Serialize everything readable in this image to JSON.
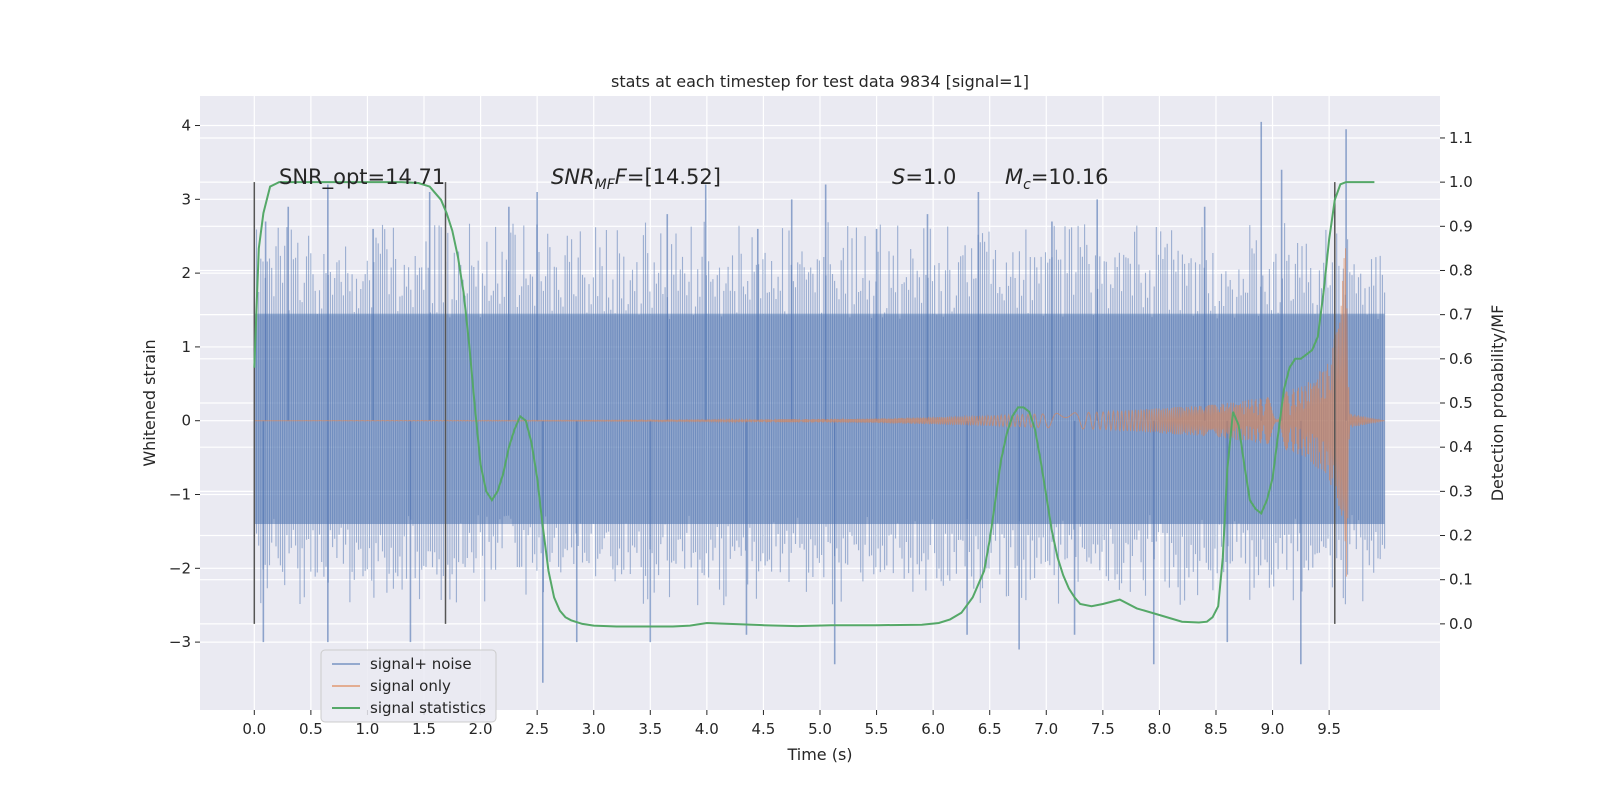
{
  "chart_data": {
    "type": "line",
    "title": "stats at each timestep for test data 9834 [signal=1]",
    "xlabel": "Time (s)",
    "ylabel": "Whitened strain",
    "y2label": "Detection probability/MF",
    "xlim": [
      -0.48,
      10.48
    ],
    "ylim": [
      -3.92,
      4.4
    ],
    "y2lim": [
      -0.195,
      1.195
    ],
    "x_ticks": [
      0.0,
      0.5,
      1.0,
      1.5,
      2.0,
      2.5,
      3.0,
      3.5,
      4.0,
      4.5,
      5.0,
      5.5,
      6.0,
      6.5,
      7.0,
      7.5,
      8.0,
      8.5,
      9.0,
      9.5
    ],
    "x_tick_labels": [
      "0.0",
      "0.5",
      "1.0",
      "1.5",
      "2.0",
      "2.5",
      "3.0",
      "3.5",
      "4.0",
      "4.5",
      "5.0",
      "5.5",
      "6.0",
      "6.5",
      "7.0",
      "7.5",
      "8.0",
      "8.5",
      "9.0",
      "9.5"
    ],
    "y_ticks": [
      -3,
      -2,
      -1,
      0,
      1,
      2,
      3,
      4
    ],
    "y_tick_labels": [
      "−3",
      "−2",
      "−1",
      "0",
      "1",
      "2",
      "3",
      "4"
    ],
    "y2_ticks": [
      0.0,
      0.1,
      0.2,
      0.3,
      0.4,
      0.5,
      0.6,
      0.7,
      0.8,
      0.9,
      1.0,
      1.1
    ],
    "y2_tick_labels": [
      "0.0",
      "0.1",
      "0.2",
      "0.3",
      "0.4",
      "0.5",
      "0.6",
      "0.7",
      "0.8",
      "0.9",
      "1.0",
      "1.1"
    ],
    "grid": true,
    "legend_position": "lower-left",
    "series": [
      {
        "name": "signal+ noise",
        "axis": "left",
        "color": "#4c72b0",
        "alpha": 0.5,
        "x_range": [
          0.0,
          9.99
        ],
        "core_envelope": [
          -1.4,
          1.45
        ],
        "typical_peak_range": [
          -2.5,
          2.7
        ],
        "spikes": [
          {
            "x": 0.1,
            "y": 2.7
          },
          {
            "x": 0.3,
            "y": 2.9
          },
          {
            "x": 0.65,
            "y": 3.2
          },
          {
            "x": 1.05,
            "y": 2.6
          },
          {
            "x": 1.55,
            "y": 3.1
          },
          {
            "x": 2.25,
            "y": 2.9
          },
          {
            "x": 2.5,
            "y": 3.1
          },
          {
            "x": 3.65,
            "y": 2.8
          },
          {
            "x": 3.99,
            "y": 3.2
          },
          {
            "x": 4.45,
            "y": 2.6
          },
          {
            "x": 4.75,
            "y": 3.0
          },
          {
            "x": 5.05,
            "y": 3.2
          },
          {
            "x": 5.5,
            "y": 2.6
          },
          {
            "x": 5.95,
            "y": 2.8
          },
          {
            "x": 6.4,
            "y": 3.1
          },
          {
            "x": 7.05,
            "y": 2.7
          },
          {
            "x": 7.45,
            "y": 3.0
          },
          {
            "x": 8.4,
            "y": 2.9
          },
          {
            "x": 8.9,
            "y": 4.05
          },
          {
            "x": 9.08,
            "y": 3.4
          },
          {
            "x": 9.65,
            "y": 3.95
          },
          {
            "x": 0.08,
            "y": -3.0
          },
          {
            "x": 0.65,
            "y": -3.0
          },
          {
            "x": 1.38,
            "y": -3.0
          },
          {
            "x": 2.55,
            "y": -3.55
          },
          {
            "x": 2.85,
            "y": -3.0
          },
          {
            "x": 3.5,
            "y": -3.0
          },
          {
            "x": 4.35,
            "y": -2.9
          },
          {
            "x": 5.13,
            "y": -3.3
          },
          {
            "x": 6.3,
            "y": -2.9
          },
          {
            "x": 6.76,
            "y": -3.1
          },
          {
            "x": 7.25,
            "y": -2.9
          },
          {
            "x": 7.95,
            "y": -3.3
          },
          {
            "x": 8.6,
            "y": -3.0
          },
          {
            "x": 9.25,
            "y": -3.3
          }
        ]
      },
      {
        "name": "signal only",
        "axis": "left",
        "color": "#dd8452",
        "alpha": 0.6,
        "description_points": [
          {
            "x": 0.0,
            "amp": 0.0
          },
          {
            "x": 4.0,
            "amp": 0.01
          },
          {
            "x": 5.5,
            "amp": 0.03
          },
          {
            "x": 6.5,
            "amp": 0.07
          },
          {
            "x": 7.5,
            "amp": 0.12
          },
          {
            "x": 8.5,
            "amp": 0.22
          },
          {
            "x": 9.0,
            "amp": 0.33
          },
          {
            "x": 9.3,
            "amp": 0.5
          },
          {
            "x": 9.5,
            "amp": 0.8
          },
          {
            "x": 9.6,
            "amp": 1.5
          },
          {
            "x": 9.65,
            "amp": 2.6
          },
          {
            "x": 9.68,
            "amp": 0.1
          },
          {
            "x": 9.99,
            "amp": 0.0
          }
        ]
      },
      {
        "name": "signal statistics",
        "axis": "right",
        "color": "#55a868",
        "x": [
          0.0,
          0.04,
          0.08,
          0.14,
          0.22,
          0.35,
          0.6,
          1.0,
          1.3,
          1.45,
          1.55,
          1.6,
          1.65,
          1.7,
          1.75,
          1.8,
          1.85,
          1.9,
          1.95,
          2.0,
          2.05,
          2.1,
          2.15,
          2.2,
          2.25,
          2.3,
          2.35,
          2.4,
          2.45,
          2.5,
          2.55,
          2.6,
          2.65,
          2.7,
          2.75,
          2.8,
          2.9,
          3.0,
          3.2,
          3.5,
          3.7,
          3.85,
          4.0,
          4.2,
          4.5,
          4.8,
          5.1,
          5.5,
          5.9,
          6.05,
          6.15,
          6.25,
          6.35,
          6.45,
          6.5,
          6.55,
          6.6,
          6.65,
          6.7,
          6.75,
          6.8,
          6.85,
          6.9,
          6.95,
          7.0,
          7.05,
          7.1,
          7.15,
          7.2,
          7.25,
          7.3,
          7.4,
          7.5,
          7.65,
          7.8,
          8.0,
          8.2,
          8.35,
          8.42,
          8.47,
          8.52,
          8.56,
          8.6,
          8.65,
          8.7,
          8.75,
          8.8,
          8.85,
          8.9,
          8.95,
          9.0,
          9.05,
          9.1,
          9.15,
          9.2,
          9.25,
          9.3,
          9.35,
          9.4,
          9.45,
          9.5,
          9.55,
          9.6,
          9.65,
          9.7,
          9.8,
          9.9
        ],
        "y": [
          0.58,
          0.85,
          0.93,
          0.99,
          1.0,
          1.0,
          1.0,
          1.0,
          1.0,
          0.998,
          0.99,
          0.975,
          0.96,
          0.93,
          0.89,
          0.83,
          0.75,
          0.63,
          0.49,
          0.36,
          0.3,
          0.28,
          0.3,
          0.34,
          0.4,
          0.44,
          0.47,
          0.46,
          0.41,
          0.33,
          0.22,
          0.12,
          0.06,
          0.03,
          0.015,
          0.008,
          0.0,
          -0.004,
          -0.006,
          -0.006,
          -0.006,
          -0.004,
          0.002,
          0.0,
          -0.003,
          -0.005,
          -0.003,
          -0.003,
          -0.002,
          0.002,
          0.01,
          0.025,
          0.06,
          0.12,
          0.19,
          0.28,
          0.37,
          0.43,
          0.47,
          0.49,
          0.49,
          0.48,
          0.44,
          0.37,
          0.29,
          0.21,
          0.15,
          0.11,
          0.08,
          0.06,
          0.045,
          0.04,
          0.045,
          0.055,
          0.035,
          0.02,
          0.005,
          0.003,
          0.005,
          0.015,
          0.04,
          0.15,
          0.35,
          0.48,
          0.45,
          0.36,
          0.28,
          0.26,
          0.25,
          0.28,
          0.33,
          0.43,
          0.53,
          0.58,
          0.6,
          0.6,
          0.61,
          0.62,
          0.65,
          0.75,
          0.87,
          0.96,
          0.995,
          1.0,
          1.0,
          1.0,
          1.0
        ]
      }
    ],
    "vlines": [
      0.0,
      1.69,
      9.55
    ],
    "vline_range_right_axis": [
      0.0,
      1.0
    ],
    "vline_color": "#555555"
  },
  "annotations": {
    "snr_opt": "SNR_opt=14.71",
    "snr_mf_label": "SNR",
    "snr_mf_sub": "MF",
    "snr_mf_value": "=[14.52]",
    "s_label": "S",
    "s_value": "=1.0",
    "mc_label": "M",
    "mc_sub": "c",
    "mc_value": "=10.16"
  },
  "legend": {
    "items": [
      {
        "label": "signal+ noise",
        "color": "#4c72b0",
        "alpha": 0.55
      },
      {
        "label": "signal only",
        "color": "#dd8452",
        "alpha": 0.6
      },
      {
        "label": "signal statistics",
        "color": "#55a868",
        "alpha": 1
      }
    ]
  }
}
